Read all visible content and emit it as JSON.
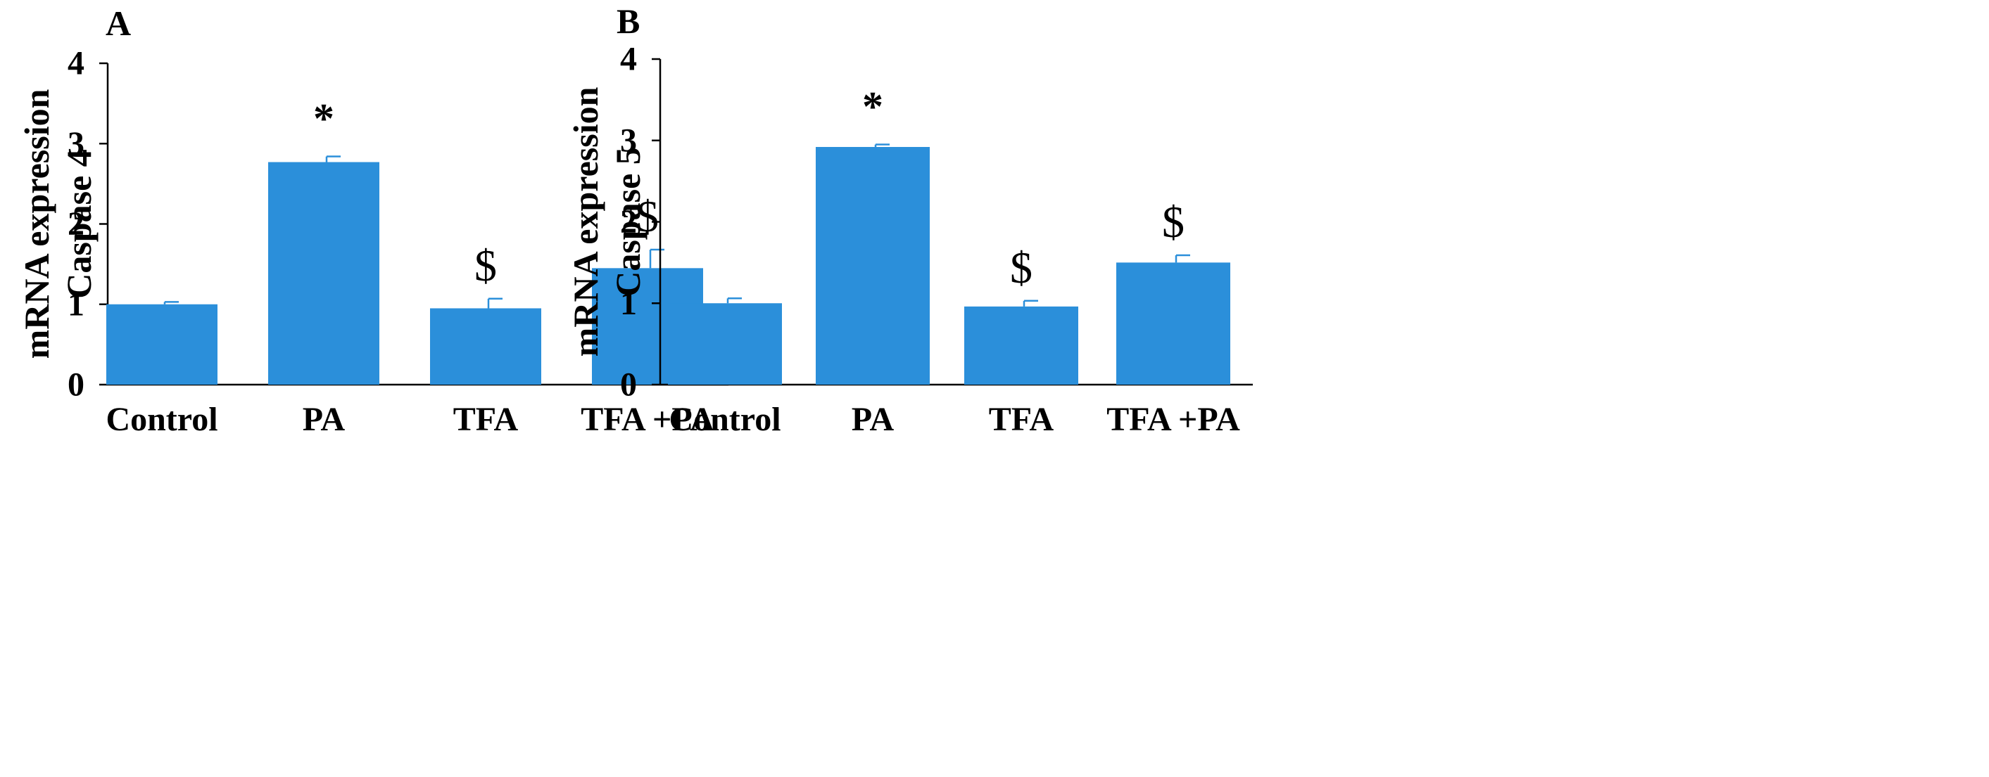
{
  "colors": {
    "bar": "#2B8FDA",
    "axis": "#000000",
    "text": "#000000"
  },
  "chart_data": [
    {
      "type": "bar",
      "panel_label": "A",
      "title": "",
      "xlabel": "",
      "ylabel_lines": [
        "mRNA expression",
        "Caspase 4"
      ],
      "categories": [
        "Control",
        "PA",
        "TFA",
        "TFA +PA"
      ],
      "values": [
        1.0,
        2.77,
        0.95,
        1.45
      ],
      "errors": [
        0.03,
        0.07,
        0.12,
        0.23
      ],
      "annotations": [
        "",
        "*",
        "$",
        "$"
      ],
      "ylim": [
        0,
        4
      ],
      "yticks": [
        "0",
        "1",
        "2",
        "3",
        "4"
      ],
      "grid": false
    },
    {
      "type": "bar",
      "panel_label": "B",
      "title": "",
      "xlabel": "",
      "ylabel_lines": [
        "mRNA expression",
        "Caspase 5"
      ],
      "categories": [
        "Control",
        "PA",
        "TFA",
        "TFA +PA"
      ],
      "values": [
        1.0,
        2.92,
        0.96,
        1.5
      ],
      "errors": [
        0.06,
        0.03,
        0.07,
        0.09
      ],
      "annotations": [
        "",
        "*",
        "$",
        "$"
      ],
      "ylim": [
        0,
        4
      ],
      "yticks": [
        "0",
        "1",
        "2",
        "3",
        "4"
      ],
      "grid": false
    }
  ]
}
